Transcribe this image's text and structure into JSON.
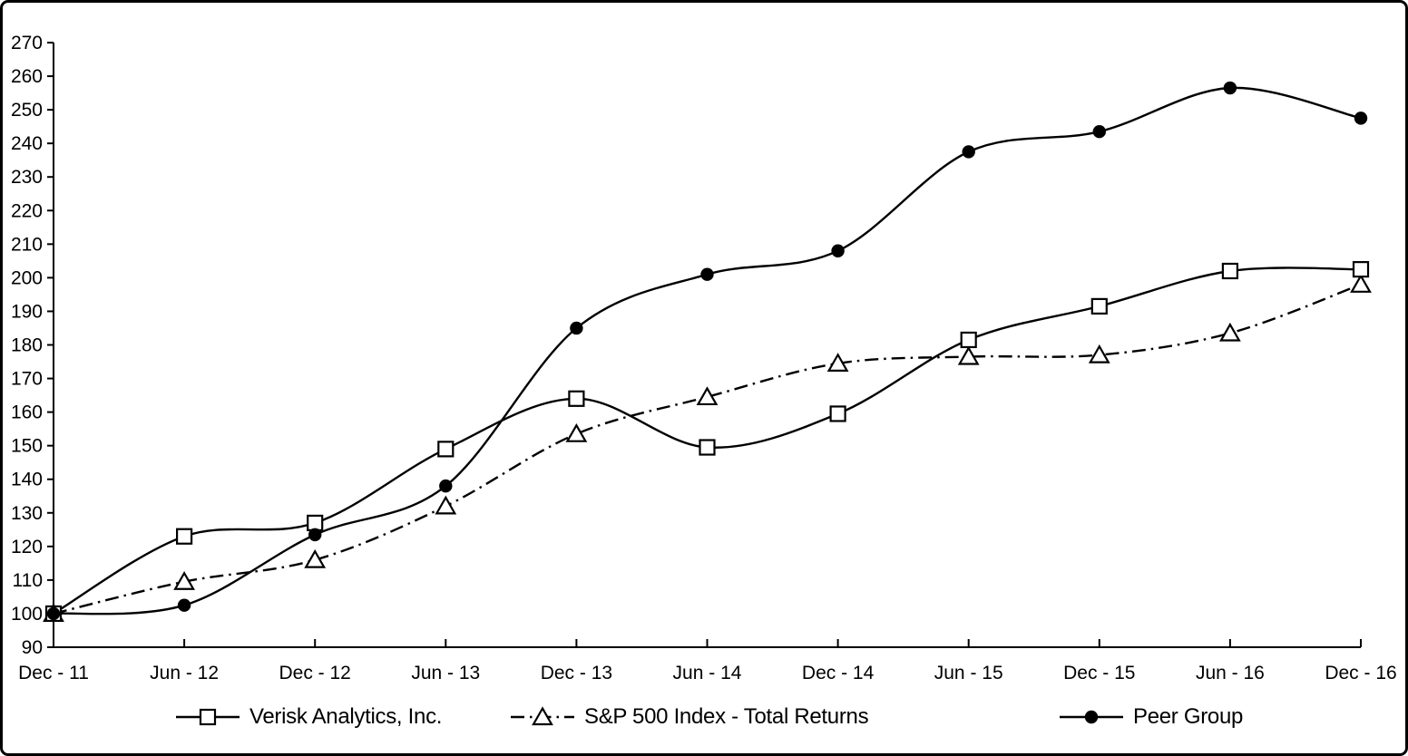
{
  "chart_data": {
    "type": "line",
    "title": "",
    "xlabel": "",
    "ylabel": "",
    "grid": false,
    "legend_position": "bottom",
    "background_color": "#ffffff",
    "axis_color": "#000000",
    "line_color": "#000000",
    "ylim": [
      90,
      270
    ],
    "ytick_step": 10,
    "categories": [
      "Dec - 11",
      "Jun - 12",
      "Dec - 12",
      "Jun - 13",
      "Dec - 13",
      "Jun - 14",
      "Dec - 14",
      "Jun - 15",
      "Dec - 15",
      "Jun - 16",
      "Dec - 16"
    ],
    "series": [
      {
        "name": "Verisk Analytics, Inc.",
        "marker": "square-open",
        "line": "solid",
        "values": [
          100,
          123,
          127,
          149,
          164,
          149.5,
          159.5,
          181.5,
          191.5,
          202,
          202.5
        ]
      },
      {
        "name": "S&P 500 Index - Total Returns",
        "marker": "triangle-open",
        "line": "dashdot",
        "values": [
          100,
          109.5,
          116,
          132,
          153.5,
          164.5,
          174.5,
          176.5,
          177,
          183.5,
          198
        ]
      },
      {
        "name": "Peer Group",
        "marker": "circle-filled",
        "line": "solid",
        "values": [
          100,
          102.5,
          123.5,
          138,
          185,
          201,
          208,
          237.5,
          243.5,
          256.5,
          247.5
        ]
      }
    ]
  }
}
